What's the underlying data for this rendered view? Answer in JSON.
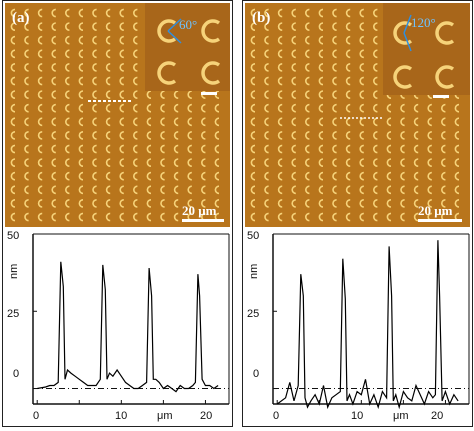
{
  "panels": [
    {
      "label": "(a)",
      "inset_angle": "60°",
      "scalebar": "20 μm",
      "plot": {
        "y_unit": "nm",
        "y_ticks": [
          "50",
          "25",
          "0"
        ],
        "x_ticks": [
          "0",
          "10",
          "20"
        ],
        "x_unit": "μm"
      }
    },
    {
      "label": "(b)",
      "inset_angle": "120°",
      "scalebar": "20 μm",
      "plot": {
        "y_unit": "nm",
        "y_ticks": [
          "50",
          "25",
          "0"
        ],
        "x_ticks": [
          "0",
          "10",
          "20"
        ],
        "x_unit": "μm"
      }
    }
  ],
  "colors": {
    "afm_background": "#b8751c",
    "ring": "#f6d37a",
    "angle_line": "#2f8fe0",
    "trace": "#000000"
  },
  "chart_data": [
    {
      "type": "line",
      "title": "",
      "xlabel": "μm",
      "ylabel": "nm",
      "xlim": [
        -0.5,
        22.8
      ],
      "ylim": [
        -5,
        50
      ],
      "x": [
        0,
        1,
        1.5,
        2,
        2.5,
        2.8,
        3.1,
        3.3,
        3.6,
        4,
        4.5,
        5,
        5.5,
        6,
        6.5,
        7,
        7.5,
        7.8,
        8.1,
        8.3,
        8.6,
        9,
        9.5,
        10,
        10.5,
        11,
        11.5,
        12,
        12.5,
        13,
        13.3,
        13.6,
        13.8,
        14.1,
        14.5,
        15,
        15.5,
        16,
        16.5,
        17,
        17.5,
        18,
        18.5,
        18.8,
        19.1,
        19.3,
        19.6,
        20,
        20.5,
        21,
        21.5
      ],
      "series": [
        {
          "name": "",
          "values": [
            0,
            0.5,
            1,
            1,
            2,
            41,
            33,
            3,
            6,
            5,
            4,
            3,
            2,
            1,
            1,
            1,
            3,
            40,
            32,
            3,
            5,
            4,
            6,
            4,
            2,
            1,
            0,
            0,
            1,
            2,
            39,
            30,
            3,
            3,
            2,
            0,
            1,
            0,
            -1,
            1,
            0,
            0,
            1,
            2,
            37,
            30,
            3,
            1,
            1,
            0,
            1
          ]
        },
        {
          "name": "",
          "values": [
            -5,
            -3,
            2,
            -4,
            1,
            37,
            30,
            -3,
            -6,
            -4,
            -2,
            -5,
            1,
            -6,
            -3,
            -2,
            -1,
            42,
            29,
            -4,
            -2,
            -5,
            -1,
            -2,
            3,
            -5,
            -2,
            -6,
            -1,
            -3,
            46,
            30,
            -4,
            -2,
            -6,
            -1,
            -3,
            -4,
            1,
            -2,
            -5,
            -1,
            -3,
            -2,
            48,
            30,
            -4,
            -1,
            -5,
            -2,
            -4
          ]
        }
      ]
    }
  ]
}
